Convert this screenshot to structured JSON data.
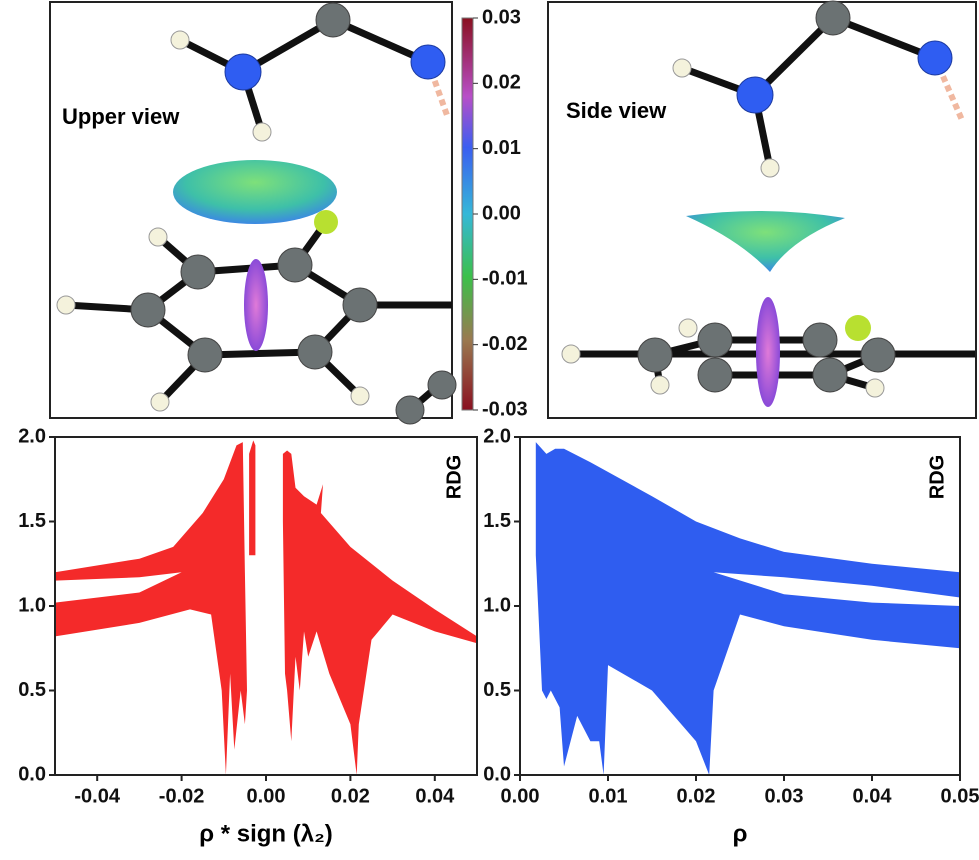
{
  "views": {
    "upper_label": "Upper view",
    "side_label": "Side view"
  },
  "colorbar": {
    "lim": [
      -0.03,
      0.03
    ],
    "ticks": [
      0.03,
      0.02,
      0.01,
      {
        "value": 0,
        "label": "0.00"
      },
      -0.01,
      -0.02,
      -0.03
    ]
  },
  "chart_data": [
    {
      "type": "area",
      "x_label": "ρ * sign (λ₂)",
      "y_label": "RDG",
      "color": "#f42a2a",
      "xlim": [
        -0.05,
        0.05
      ],
      "ylim": [
        0,
        2
      ],
      "xticks": [
        -0.04,
        -0.02,
        {
          "value": 0,
          "label": "0.00"
        },
        0.02,
        0.04
      ],
      "yticks": [
        {
          "value": 0,
          "label": "0.0"
        },
        0.5,
        {
          "value": 1,
          "label": "1.0"
        },
        1.5,
        {
          "value": 2,
          "label": "2.0"
        }
      ],
      "regions": [
        {
          "x": [
            -0.05,
            -0.03,
            -0.022,
            -0.015,
            -0.01,
            -0.007,
            -0.0055,
            -0.005,
            -0.0045,
            -0.005,
            -0.006,
            -0.0075,
            -0.0085,
            -0.0095,
            -0.0105,
            -0.013,
            -0.018,
            -0.03,
            -0.05,
            null,
            -0.05,
            -0.05,
            -0.03,
            -0.02,
            -0.03
          ],
          "y": [
            1.2,
            1.28,
            1.35,
            1.55,
            1.75,
            1.95,
            1.97,
            1.2,
            0.5,
            0.3,
            0.5,
            0.15,
            0.6,
            0,
            0.5,
            0.95,
            0.98,
            0.9,
            0.82,
            null,
            1.02,
            1.15,
            1.17,
            1.2,
            1.08
          ]
        },
        {
          "x": [
            -0.004,
            -0.003,
            -0.0025,
            -0.0025,
            -0.004
          ],
          "y": [
            1.9,
            1.98,
            1.95,
            1.3,
            1.3
          ]
        },
        {
          "x": [
            0.004,
            0.005,
            0.006,
            0.007,
            0.009,
            0.012,
            0.0135,
            0.013,
            0.02,
            0.03,
            0.04,
            0.05,
            0.05,
            0.04,
            0.03,
            0.025,
            0.022,
            0.0215,
            0.02,
            0.015,
            0.012,
            0.01,
            0.009,
            0.008,
            0.007,
            0.006,
            0.005,
            0.0045,
            0.004
          ],
          "y": [
            1.9,
            1.92,
            1.9,
            1.7,
            1.65,
            1.6,
            1.72,
            1.55,
            1.35,
            1.15,
            0.98,
            0.82,
            0.78,
            0.85,
            0.95,
            0.8,
            0.3,
            0,
            0.3,
            0.6,
            0.85,
            0.7,
            0.85,
            0.5,
            0.7,
            0.2,
            0.5,
            0.6,
            1.5
          ]
        }
      ]
    },
    {
      "type": "area",
      "x_label": "ρ",
      "y_label": "RDG",
      "color": "#2f5df0",
      "xlim": [
        0,
        0.05
      ],
      "ylim": [
        0,
        2
      ],
      "xticks": [
        {
          "value": 0,
          "label": "0.00"
        },
        0.01,
        0.02,
        0.03,
        0.04,
        0.05
      ],
      "yticks": [
        {
          "value": 0,
          "label": "0.0"
        },
        0.5,
        {
          "value": 1,
          "label": "1.0"
        },
        1.5,
        {
          "value": 2,
          "label": "2.0"
        }
      ],
      "regions": [
        {
          "x": [
            0.0018,
            0.003,
            0.004,
            0.005,
            0.008,
            0.015,
            0.02,
            0.025,
            0.03,
            0.04,
            0.05,
            0.05,
            0.04,
            0.03,
            0.025,
            0.022,
            0.0215,
            0.02,
            0.015,
            0.01,
            0.0095,
            0.009,
            0.008,
            0.0065,
            0.005,
            0.0045,
            0.0035,
            0.003,
            0.0025,
            0.0018,
            null,
            0.022,
            0.03,
            0.04,
            0.05,
            0.05,
            0.04,
            0.03
          ],
          "y": [
            1.97,
            1.9,
            1.93,
            1.93,
            1.85,
            1.65,
            1.5,
            1.4,
            1.32,
            1.25,
            1.2,
            0.75,
            0.8,
            0.88,
            0.95,
            0.5,
            0,
            0.2,
            0.5,
            0.65,
            0,
            0.2,
            0.2,
            0.35,
            0.05,
            0.4,
            0.5,
            0.45,
            0.5,
            1.3,
            null,
            1.2,
            1.17,
            1.12,
            1.05,
            1,
            1.02,
            1.07
          ]
        }
      ]
    }
  ]
}
